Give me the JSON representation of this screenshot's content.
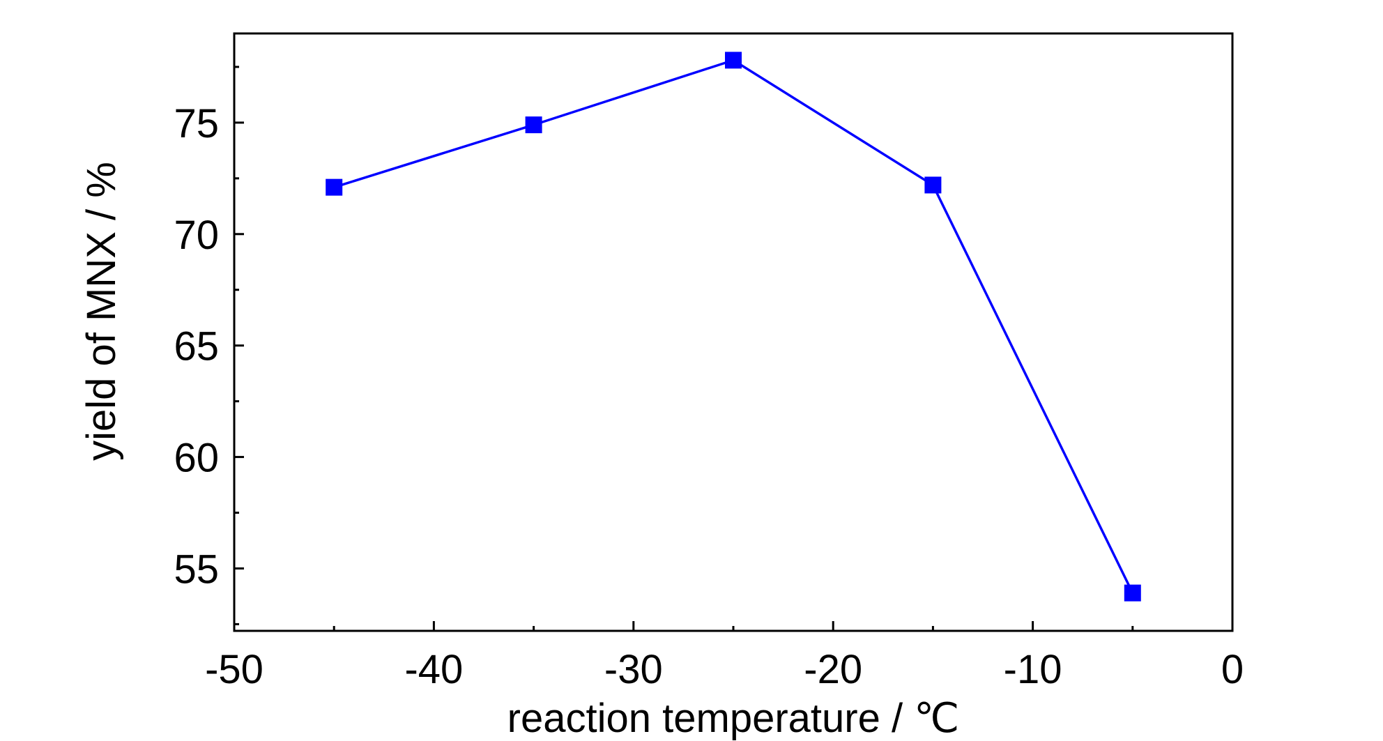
{
  "chart_data": {
    "type": "line",
    "title": "",
    "xlabel": "reaction temperature / ℃",
    "ylabel": "yield of MNX / %",
    "xlim": [
      -50,
      0
    ],
    "ylim": [
      52.2,
      79
    ],
    "xticks": [
      -50,
      -40,
      -30,
      -20,
      -10,
      0
    ],
    "xtick_labels": [
      "-50",
      "-40",
      "-30",
      "-20",
      "-10",
      "0"
    ],
    "yticks": [
      55,
      60,
      65,
      70,
      75
    ],
    "ytick_labels": [
      "55",
      "60",
      "65",
      "70",
      "75"
    ],
    "grid": false,
    "legend": "none",
    "series": [
      {
        "x": [
          -45,
          -35,
          -25,
          -15,
          -5
        ],
        "y": [
          72.1,
          74.9,
          77.8,
          72.2,
          53.9
        ],
        "color": "#0000ff",
        "marker": "square"
      }
    ]
  }
}
